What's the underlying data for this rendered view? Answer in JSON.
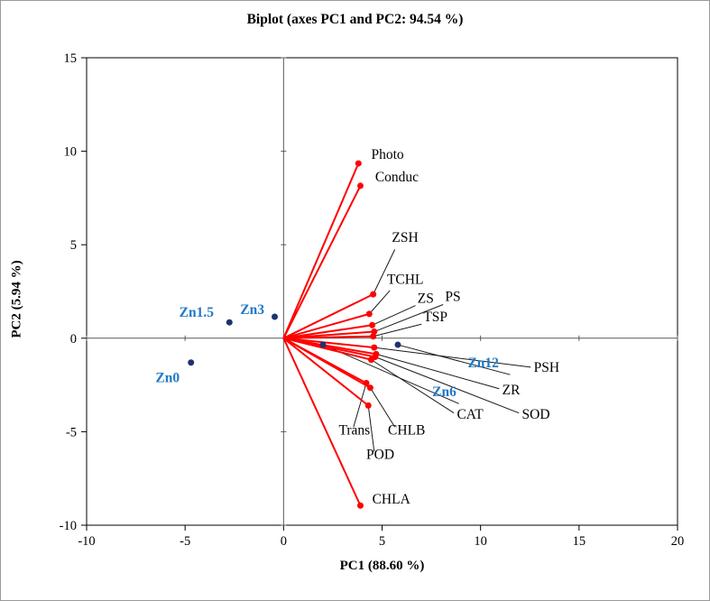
{
  "chart_data": {
    "type": "scatter",
    "subtype": "pca-biplot",
    "title": "Biplot (axes PC1 and PC2: 94.54 %)",
    "xlabel": "PC1 (88.60 %)",
    "ylabel": "PC2 (5.94 %)",
    "xlim": [
      -10,
      20
    ],
    "ylim": [
      -10,
      15
    ],
    "x_ticks": [
      -10,
      -5,
      0,
      5,
      10,
      15,
      20
    ],
    "y_ticks": [
      -10,
      -5,
      0,
      5,
      10,
      15
    ],
    "grid": false,
    "legend": "none",
    "variables": [
      {
        "name": "Photo",
        "x": 3.8,
        "y": 9.35,
        "label": [
          4.45,
          9.6
        ],
        "leader": null
      },
      {
        "name": "Conduc",
        "x": 3.9,
        "y": 8.15,
        "label": [
          4.65,
          8.4
        ],
        "leader": null
      },
      {
        "name": "ZSH",
        "x": 4.55,
        "y": 2.35,
        "label": [
          5.5,
          5.15
        ],
        "leader": [
          5.65,
          4.75
        ]
      },
      {
        "name": "TCHL",
        "x": 4.35,
        "y": 1.3,
        "label": [
          5.25,
          2.9
        ],
        "leader": [
          5.4,
          2.55
        ]
      },
      {
        "name": "ZS",
        "x": 4.5,
        "y": 0.7,
        "label": [
          6.8,
          1.9
        ],
        "leader": [
          6.7,
          1.75
        ]
      },
      {
        "name": "PS",
        "x": 4.6,
        "y": 0.35,
        "label": [
          8.2,
          2.0
        ],
        "leader": [
          8.1,
          1.8
        ]
      },
      {
        "name": "TSP",
        "x": 4.55,
        "y": 0.1,
        "label": [
          7.1,
          0.9
        ],
        "leader": [
          7.0,
          0.75
        ]
      },
      {
        "name": "PSH",
        "x": 4.6,
        "y": -0.5,
        "label": [
          12.7,
          -1.8
        ],
        "leader": [
          12.55,
          -1.55
        ]
      },
      {
        "name": "ZR",
        "x": 4.7,
        "y": -0.85,
        "label": [
          11.1,
          -3.0
        ],
        "leader": [
          10.95,
          -2.7
        ]
      },
      {
        "name": "CAT",
        "x": 4.45,
        "y": -1.15,
        "label": [
          8.8,
          -4.3
        ],
        "leader": [
          8.65,
          -4.0
        ]
      },
      {
        "name": "SOD",
        "x": 4.65,
        "y": -1.0,
        "label": [
          12.1,
          -4.3
        ],
        "leader": [
          11.95,
          -4.0
        ]
      },
      {
        "name": "Trans",
        "x": 4.2,
        "y": -2.4,
        "label": [
          2.8,
          -5.15
        ],
        "leader": [
          3.55,
          -4.75
        ]
      },
      {
        "name": "CHLB",
        "x": 4.4,
        "y": -2.65,
        "label": [
          5.3,
          -5.15
        ],
        "leader": [
          5.65,
          -4.75
        ]
      },
      {
        "name": "POD",
        "x": 4.3,
        "y": -3.6,
        "label": [
          4.2,
          -6.45
        ],
        "leader": [
          4.6,
          -6.05
        ]
      },
      {
        "name": "CHLA",
        "x": 3.9,
        "y": -8.95,
        "label": [
          4.5,
          -8.85
        ],
        "leader": null
      }
    ],
    "observations": [
      {
        "name": "Zn0",
        "x": -4.7,
        "y": -1.3,
        "label": [
          -6.5,
          -2.35
        ],
        "leader": null
      },
      {
        "name": "Zn1.5",
        "x": -2.75,
        "y": 0.85,
        "label": [
          -5.3,
          1.15
        ],
        "leader": null
      },
      {
        "name": "Zn3",
        "x": -0.45,
        "y": 1.15,
        "label": [
          -2.2,
          1.3
        ],
        "leader": null
      },
      {
        "name": "Zn6",
        "x": 2.0,
        "y": -0.35,
        "label": [
          7.55,
          -3.1
        ],
        "leader": [
          8.9,
          -3.5
        ]
      },
      {
        "name": "Zn12",
        "x": 5.8,
        "y": -0.35,
        "label": [
          9.35,
          -1.55
        ],
        "leader": [
          11.5,
          -1.95
        ]
      }
    ]
  },
  "style": {
    "vector_color": "#ff0000",
    "point_color": "#1f3270",
    "obs_label_color": "#2079c7",
    "var_label_color": "#000000",
    "leader_color": "#1a1a1a",
    "frame_color": "#000000",
    "zero_line_color": "#595959",
    "tick_label_color": "#000000"
  }
}
